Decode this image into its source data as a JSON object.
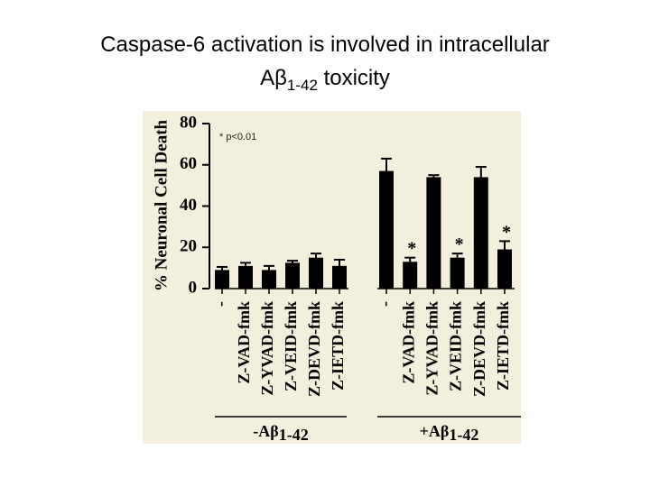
{
  "chart_data": {
    "type": "bar",
    "title": [
      "Caspase-6 activation is involved in intracellular",
      "Aβ",
      "1-42",
      " toxicity"
    ],
    "y_label": "% Neuronal Cell Death",
    "annotation": "* p<0.01",
    "categories": [
      "-",
      "Z-VAD-fmk",
      "Z-YVAD-fmk",
      "Z-VEID-fmk",
      "Z-DEVD-fmk",
      "Z-IETD-fmk",
      "-",
      "Z-VAD-fmk",
      "Z-YVAD-fmk",
      "Z-VEID-fmk",
      "Z-DEVD-fmk",
      "Z-IETD-fmk"
    ],
    "values": [
      9,
      11,
      9,
      12.5,
      15,
      11,
      57,
      13,
      54,
      15,
      54,
      19
    ],
    "errors": [
      1.5,
      1.5,
      2,
      1,
      2,
      3,
      6,
      2,
      1,
      2,
      5,
      4
    ],
    "significance": [
      null,
      null,
      null,
      null,
      null,
      null,
      null,
      "*",
      null,
      "*",
      null,
      "*"
    ],
    "groups": [
      {
        "label": "-Aβ",
        "sub": "1-42"
      },
      {
        "label": "+Aβ",
        "sub": "1-42"
      }
    ],
    "color": "#000000",
    "ylim": [
      0,
      80
    ],
    "yticks": [
      0,
      20,
      40,
      60,
      80
    ]
  }
}
